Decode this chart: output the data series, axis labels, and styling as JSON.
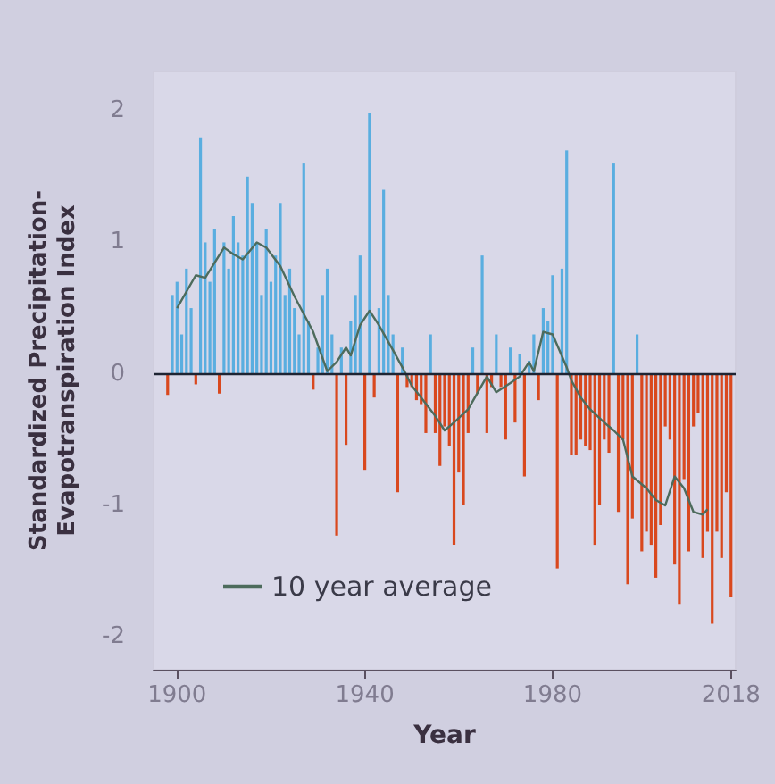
{
  "chart_data": {
    "type": "bar",
    "xlabel": "Year",
    "ylabel": "Standardized Precipitation-\nEvapotranspiration Index",
    "x": [
      1898,
      1899,
      1900,
      1901,
      1902,
      1903,
      1904,
      1905,
      1906,
      1907,
      1908,
      1909,
      1910,
      1911,
      1912,
      1913,
      1914,
      1915,
      1916,
      1917,
      1918,
      1919,
      1920,
      1921,
      1922,
      1923,
      1924,
      1925,
      1926,
      1927,
      1928,
      1929,
      1930,
      1931,
      1932,
      1933,
      1934,
      1935,
      1936,
      1937,
      1938,
      1939,
      1940,
      1941,
      1942,
      1943,
      1944,
      1945,
      1946,
      1947,
      1948,
      1949,
      1950,
      1951,
      1952,
      1953,
      1954,
      1955,
      1956,
      1957,
      1958,
      1959,
      1960,
      1961,
      1962,
      1963,
      1964,
      1965,
      1966,
      1967,
      1968,
      1969,
      1970,
      1971,
      1972,
      1973,
      1974,
      1975,
      1976,
      1977,
      1978,
      1979,
      1980,
      1981,
      1982,
      1983,
      1984,
      1985,
      1986,
      1987,
      1988,
      1989,
      1990,
      1991,
      1992,
      1993,
      1994,
      1995,
      1996,
      1997,
      1998,
      1999,
      2000,
      2001,
      2002,
      2003,
      2004,
      2005,
      2006,
      2007,
      2008,
      2009,
      2010,
      2011,
      2012,
      2013,
      2014,
      2015,
      2016,
      2017,
      2018
    ],
    "series": [
      {
        "values": [
          -0.16,
          0.6,
          0.7,
          0.3,
          0.8,
          0.5,
          -0.08,
          1.8,
          1.0,
          0.7,
          1.1,
          -0.15,
          1.0,
          0.8,
          1.2,
          1.0,
          0.9,
          1.5,
          1.3,
          1.0,
          0.6,
          1.1,
          0.7,
          0.9,
          1.3,
          0.6,
          0.8,
          0.5,
          0.3,
          1.6,
          0.4,
          -0.12,
          0.2,
          0.6,
          0.8,
          0.3,
          -1.23,
          0.2,
          -0.54,
          0.4,
          0.6,
          0.9,
          -0.73,
          1.98,
          -0.18,
          0.5,
          1.4,
          0.6,
          0.3,
          -0.9,
          0.2,
          -0.1,
          -0.1,
          -0.2,
          -0.23,
          -0.45,
          0.3,
          -0.45,
          -0.7,
          -0.4,
          -0.55,
          -1.3,
          -0.75,
          -1.0,
          -0.45,
          0.2,
          -0.15,
          0.9,
          -0.45,
          -0.1,
          0.3,
          -0.1,
          -0.5,
          0.2,
          -0.37,
          0.15,
          -0.78,
          0.1,
          0.3,
          -0.2,
          0.5,
          0.4,
          0.75,
          -1.48,
          0.8,
          1.7,
          -0.62,
          -0.62,
          -0.5,
          -0.55,
          -0.58,
          -1.3,
          -1.0,
          -0.5,
          -0.6,
          1.6,
          -1.05,
          -0.5,
          -1.6,
          -1.1,
          0.3,
          -1.35,
          -1.2,
          -1.3,
          -1.55,
          -1.15,
          -0.4,
          -0.5,
          -1.45,
          -1.75,
          -0.8,
          -1.35,
          -0.4,
          -0.3,
          -1.4,
          -1.2,
          -1.9,
          -1.2,
          -1.4,
          -0.9,
          -1.7
        ],
        "colors": [
          "#d9481e",
          "#5aaee0",
          "#5aaee0",
          "#5aaee0",
          "#5aaee0",
          "#5aaee0",
          "#d9481e",
          "#5aaee0",
          "#5aaee0",
          "#5aaee0",
          "#5aaee0",
          "#d9481e",
          "#5aaee0",
          "#5aaee0",
          "#5aaee0",
          "#5aaee0",
          "#5aaee0",
          "#5aaee0",
          "#5aaee0",
          "#5aaee0",
          "#5aaee0",
          "#5aaee0",
          "#5aaee0",
          "#5aaee0",
          "#5aaee0",
          "#5aaee0",
          "#5aaee0",
          "#5aaee0",
          "#5aaee0",
          "#5aaee0",
          "#5aaee0",
          "#d9481e",
          "#5aaee0",
          "#5aaee0",
          "#5aaee0",
          "#5aaee0",
          "#d9481e",
          "#5aaee0",
          "#d9481e",
          "#5aaee0",
          "#5aaee0",
          "#5aaee0",
          "#d9481e",
          "#5aaee0",
          "#d9481e",
          "#5aaee0",
          "#5aaee0",
          "#5aaee0",
          "#5aaee0",
          "#d9481e",
          "#5aaee0",
          "#d9481e",
          "#d9481e",
          "#d9481e",
          "#d9481e",
          "#d9481e",
          "#5aaee0",
          "#d9481e",
          "#d9481e",
          "#d9481e",
          "#d9481e",
          "#d9481e",
          "#d9481e",
          "#d9481e",
          "#d9481e",
          "#5aaee0",
          "#d9481e",
          "#5aaee0",
          "#d9481e",
          "#d9481e",
          "#5aaee0",
          "#d9481e",
          "#d9481e",
          "#5aaee0",
          "#d9481e",
          "#5aaee0",
          "#d9481e",
          "#5aaee0",
          "#5aaee0",
          "#d9481e",
          "#5aaee0",
          "#5aaee0",
          "#5aaee0",
          "#d9481e",
          "#5aaee0",
          "#5aaee0",
          "#d9481e",
          "#d9481e",
          "#d9481e",
          "#d9481e",
          "#d9481e",
          "#d9481e",
          "#d9481e",
          "#d9481e",
          "#d9481e",
          "#5aaee0",
          "#d9481e",
          "#d9481e",
          "#d9481e",
          "#d9481e",
          "#5aaee0",
          "#d9481e",
          "#d9481e",
          "#d9481e",
          "#d9481e",
          "#d9481e",
          "#d9481e",
          "#d9481e",
          "#d9481e",
          "#d9481e",
          "#d9481e",
          "#d9481e",
          "#d9481e",
          "#d9481e",
          "#d9481e",
          "#d9481e",
          "#d9481e",
          "#d9481e",
          "#d9481e",
          "#d9481e",
          "#d9481e"
        ]
      },
      {
        "type": "line",
        "name": "10 year average",
        "color": "#4d6b5c",
        "x": [
          1900,
          1904,
          1906,
          1910,
          1912,
          1914,
          1917,
          1919,
          1922,
          1925,
          1929,
          1932,
          1934,
          1936,
          1937,
          1939,
          1941,
          1943,
          1946,
          1948,
          1950,
          1952,
          1955,
          1957,
          1959,
          1962,
          1966,
          1968,
          1971,
          1973,
          1975,
          1976,
          1978,
          1980,
          1983,
          1984,
          1986,
          1988,
          1991,
          1993,
          1995,
          1997,
          2000,
          2002,
          2004,
          2006,
          2008,
          2010,
          2012,
          2013
        ],
        "values": [
          0.5,
          0.75,
          0.73,
          0.96,
          0.91,
          0.87,
          1.0,
          0.96,
          0.82,
          0.59,
          0.32,
          0.02,
          0.09,
          0.2,
          0.14,
          0.37,
          0.48,
          0.37,
          0.18,
          0.05,
          -0.09,
          -0.18,
          -0.32,
          -0.43,
          -0.37,
          -0.27,
          -0.02,
          -0.14,
          -0.07,
          -0.02,
          0.09,
          0.02,
          0.32,
          0.3,
          0.05,
          -0.05,
          -0.18,
          -0.27,
          -0.37,
          -0.43,
          -0.5,
          -0.78,
          -0.87,
          -0.96,
          -1.0,
          -0.78,
          -0.87,
          -1.05,
          -1.07,
          -1.03
        ]
      }
    ],
    "xlim": [
      1895,
      2019
    ],
    "xticks": [
      1900,
      1940,
      1980,
      2018
    ],
    "ylim": [
      -2.25,
      2.3
    ],
    "yticks": [
      -2,
      -1,
      0,
      1,
      2
    ],
    "ref_lines": [
      {
        "axis": "y",
        "value": 0,
        "color": "#1e2433"
      }
    ],
    "legend": "bottom left",
    "grid": false
  }
}
